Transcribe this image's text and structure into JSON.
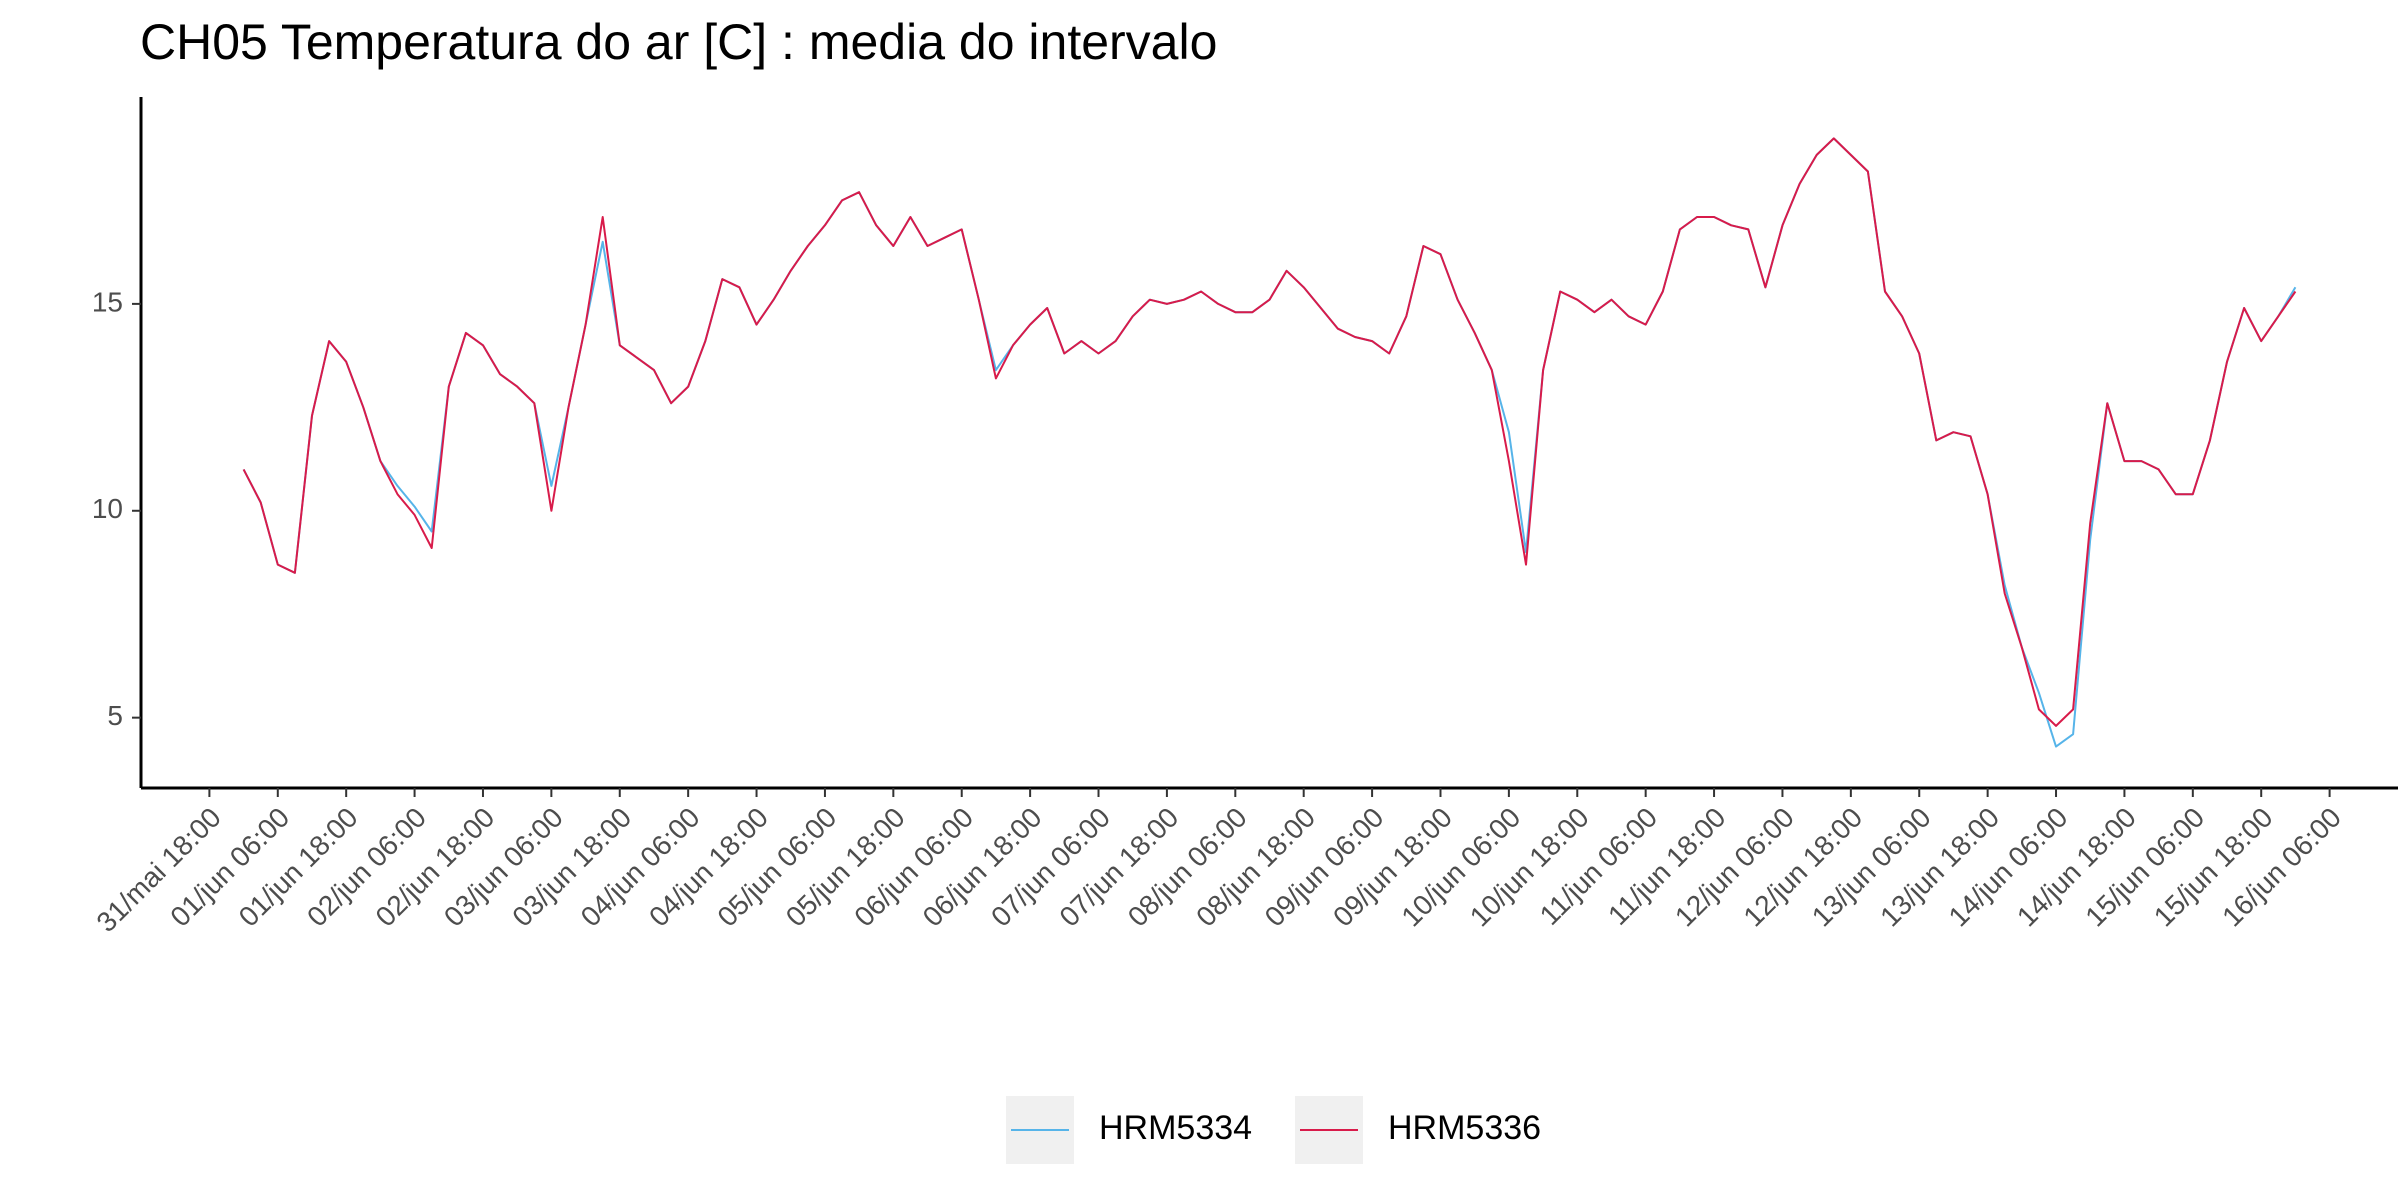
{
  "chart_data": {
    "type": "line",
    "title": "CH05 Temperatura do ar [C] : media do intervalo",
    "x": [
      "01/jun 00:00",
      "01/jun 03:00",
      "01/jun 06:00",
      "01/jun 09:00",
      "01/jun 12:00",
      "01/jun 15:00",
      "01/jun 18:00",
      "01/jun 21:00",
      "02/jun 00:00",
      "02/jun 03:00",
      "02/jun 06:00",
      "02/jun 09:00",
      "02/jun 12:00",
      "02/jun 15:00",
      "02/jun 18:00",
      "02/jun 21:00",
      "03/jun 00:00",
      "03/jun 03:00",
      "03/jun 06:00",
      "03/jun 09:00",
      "03/jun 12:00",
      "03/jun 15:00",
      "03/jun 18:00",
      "03/jun 21:00",
      "04/jun 00:00",
      "04/jun 03:00",
      "04/jun 06:00",
      "04/jun 09:00",
      "04/jun 12:00",
      "04/jun 15:00",
      "04/jun 18:00",
      "04/jun 21:00",
      "05/jun 00:00",
      "05/jun 03:00",
      "05/jun 06:00",
      "05/jun 09:00",
      "05/jun 12:00",
      "05/jun 15:00",
      "05/jun 18:00",
      "05/jun 21:00",
      "06/jun 00:00",
      "06/jun 03:00",
      "06/jun 06:00",
      "06/jun 09:00",
      "06/jun 12:00",
      "06/jun 15:00",
      "06/jun 18:00",
      "06/jun 21:00",
      "07/jun 00:00",
      "07/jun 03:00",
      "07/jun 06:00",
      "07/jun 09:00",
      "07/jun 12:00",
      "07/jun 15:00",
      "07/jun 18:00",
      "07/jun 21:00",
      "08/jun 00:00",
      "08/jun 03:00",
      "08/jun 06:00",
      "08/jun 09:00",
      "08/jun 12:00",
      "08/jun 15:00",
      "08/jun 18:00",
      "08/jun 21:00",
      "09/jun 00:00",
      "09/jun 03:00",
      "09/jun 06:00",
      "09/jun 09:00",
      "09/jun 12:00",
      "09/jun 15:00",
      "09/jun 18:00",
      "09/jun 21:00",
      "10/jun 00:00",
      "10/jun 03:00",
      "10/jun 06:00",
      "10/jun 09:00",
      "10/jun 12:00",
      "10/jun 15:00",
      "10/jun 18:00",
      "10/jun 21:00",
      "11/jun 00:00",
      "11/jun 03:00",
      "11/jun 06:00",
      "11/jun 09:00",
      "11/jun 12:00",
      "11/jun 15:00",
      "11/jun 18:00",
      "11/jun 21:00",
      "12/jun 00:00",
      "12/jun 03:00",
      "12/jun 06:00",
      "12/jun 09:00",
      "12/jun 12:00",
      "12/jun 15:00",
      "12/jun 18:00",
      "12/jun 21:00",
      "13/jun 00:00",
      "13/jun 03:00",
      "13/jun 06:00",
      "13/jun 09:00",
      "13/jun 12:00",
      "13/jun 15:00",
      "13/jun 18:00",
      "13/jun 21:00",
      "14/jun 00:00",
      "14/jun 03:00",
      "14/jun 06:00",
      "14/jun 09:00",
      "14/jun 12:00",
      "14/jun 15:00",
      "14/jun 18:00",
      "14/jun 21:00",
      "15/jun 00:00",
      "15/jun 03:00",
      "15/jun 06:00",
      "15/jun 09:00",
      "15/jun 12:00",
      "15/jun 15:00",
      "15/jun 18:00",
      "15/jun 21:00",
      "16/jun 00:00"
    ],
    "series": [
      {
        "name": "HRM5334",
        "color": "#56b4e9",
        "values": [
          11.0,
          10.2,
          8.7,
          8.5,
          12.3,
          14.1,
          13.6,
          12.5,
          11.2,
          10.6,
          10.1,
          9.5,
          13.0,
          14.3,
          14.0,
          13.3,
          13.0,
          12.6,
          10.6,
          12.5,
          14.5,
          16.5,
          14.0,
          13.7,
          13.4,
          12.6,
          13.0,
          14.1,
          15.6,
          15.4,
          14.5,
          15.1,
          15.8,
          16.4,
          16.9,
          17.5,
          17.7,
          16.9,
          16.4,
          17.1,
          16.4,
          16.6,
          16.8,
          15.1,
          13.4,
          14.0,
          14.5,
          14.9,
          13.8,
          14.1,
          13.8,
          14.1,
          14.7,
          15.1,
          15.0,
          15.1,
          15.3,
          15.0,
          14.8,
          14.8,
          15.1,
          15.8,
          15.4,
          14.9,
          14.4,
          14.2,
          14.1,
          13.8,
          14.7,
          16.4,
          16.2,
          15.1,
          14.3,
          13.4,
          11.9,
          9.0,
          13.4,
          15.3,
          15.1,
          14.8,
          15.1,
          14.7,
          14.5,
          15.3,
          16.8,
          17.1,
          17.1,
          16.9,
          16.8,
          15.4,
          16.9,
          17.9,
          18.6,
          19.0,
          18.6,
          18.2,
          15.3,
          14.7,
          13.8,
          11.7,
          11.9,
          11.8,
          10.4,
          8.2,
          6.7,
          5.6,
          4.3,
          4.6,
          9.3,
          12.6,
          11.2,
          11.2,
          11.0,
          10.4,
          10.4,
          11.7,
          13.6,
          14.9,
          14.1,
          14.7,
          15.4
        ]
      },
      {
        "name": "HRM5336",
        "color": "#d81b4a",
        "values": [
          11.0,
          10.2,
          8.7,
          8.5,
          12.3,
          14.1,
          13.6,
          12.5,
          11.2,
          10.4,
          9.9,
          9.1,
          13.0,
          14.3,
          14.0,
          13.3,
          13.0,
          12.6,
          10.0,
          12.5,
          14.5,
          17.1,
          14.0,
          13.7,
          13.4,
          12.6,
          13.0,
          14.1,
          15.6,
          15.4,
          14.5,
          15.1,
          15.8,
          16.4,
          16.9,
          17.5,
          17.7,
          16.9,
          16.4,
          17.1,
          16.4,
          16.6,
          16.8,
          15.1,
          13.2,
          14.0,
          14.5,
          14.9,
          13.8,
          14.1,
          13.8,
          14.1,
          14.7,
          15.1,
          15.0,
          15.1,
          15.3,
          15.0,
          14.8,
          14.8,
          15.1,
          15.8,
          15.4,
          14.9,
          14.4,
          14.2,
          14.1,
          13.8,
          14.7,
          16.4,
          16.2,
          15.1,
          14.3,
          13.4,
          11.2,
          8.7,
          13.4,
          15.3,
          15.1,
          14.8,
          15.1,
          14.7,
          14.5,
          15.3,
          16.8,
          17.1,
          17.1,
          16.9,
          16.8,
          15.4,
          16.9,
          17.9,
          18.6,
          19.0,
          18.6,
          18.2,
          15.3,
          14.7,
          13.8,
          11.7,
          11.9,
          11.8,
          10.4,
          8.0,
          6.7,
          5.2,
          4.8,
          5.2,
          9.7,
          12.6,
          11.2,
          11.2,
          11.0,
          10.4,
          10.4,
          11.7,
          13.6,
          14.9,
          14.1,
          14.7,
          15.3
        ]
      }
    ],
    "xlim": [
      "31/mai 06:00",
      "16/jun 18:00"
    ],
    "xticks": [
      "31/mai 18:00",
      "01/jun 06:00",
      "01/jun 18:00",
      "02/jun 06:00",
      "02/jun 18:00",
      "03/jun 06:00",
      "03/jun 18:00",
      "04/jun 06:00",
      "04/jun 18:00",
      "05/jun 06:00",
      "05/jun 18:00",
      "06/jun 06:00",
      "06/jun 18:00",
      "07/jun 06:00",
      "07/jun 18:00",
      "08/jun 06:00",
      "08/jun 18:00",
      "09/jun 06:00",
      "09/jun 18:00",
      "10/jun 06:00",
      "10/jun 18:00",
      "11/jun 06:00",
      "11/jun 18:00",
      "12/jun 06:00",
      "12/jun 18:00",
      "13/jun 06:00",
      "13/jun 18:00",
      "14/jun 06:00",
      "14/jun 18:00",
      "15/jun 06:00",
      "15/jun 18:00",
      "16/jun 06:00"
    ],
    "ylim": [
      3.3,
      20
    ],
    "yticks": [
      5,
      10,
      15
    ],
    "grid": false,
    "legend": "bottom"
  }
}
